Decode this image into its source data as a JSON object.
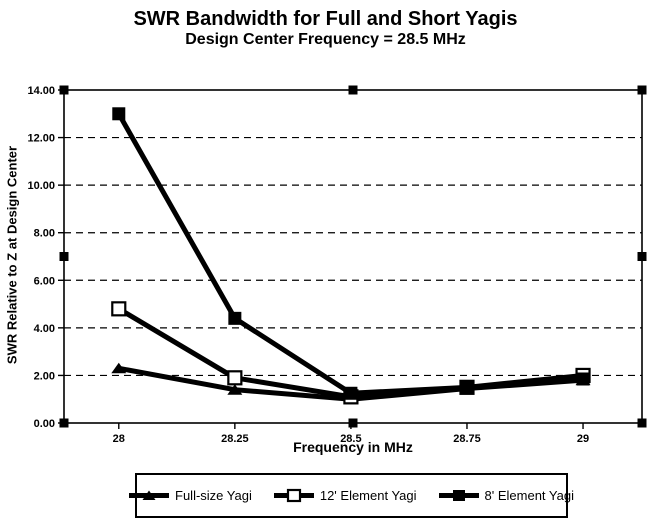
{
  "title": "SWR Bandwidth for Full and Short Yagis",
  "subtitle": "Design Center Frequency = 28.5 MHz",
  "colors": {
    "line": "#000000",
    "background": "#ffffff"
  },
  "selection_handles_visible": true,
  "chart_data": {
    "type": "line",
    "title": "SWR Bandwidth for Full and Short Yagis",
    "subtitle": "Design Center Frequency = 28.5 MHz",
    "xlabel": "Frequency in MHz",
    "ylabel": "SWR Relative to Z at Design Center",
    "x": [
      28,
      28.25,
      28.5,
      28.75,
      29
    ],
    "x_tick_labels": [
      "28",
      "28.25",
      "28.5",
      "28.75",
      "29"
    ],
    "xlim": [
      27.882,
      29.127
    ],
    "y_ticks": [
      0,
      2,
      4,
      6,
      8,
      10,
      12,
      14
    ],
    "y_tick_labels": [
      "0.00",
      "2.00",
      "4.00",
      "6.00",
      "8.00",
      "10.00",
      "12.00",
      "14.00"
    ],
    "ylim": [
      0,
      14
    ],
    "gridlines_y": [
      2,
      4,
      6,
      8,
      10,
      12
    ],
    "grid_style": "horizontal-dashed",
    "legend_position": "bottom-box",
    "series": [
      {
        "name": "Full-size Yagi",
        "marker": "triangle-filled",
        "values": [
          2.3,
          1.4,
          1.0,
          1.45,
          1.8
        ]
      },
      {
        "name": "12' Element Yagi",
        "marker": "square-open",
        "values": [
          4.8,
          1.9,
          1.1,
          1.5,
          2.0
        ]
      },
      {
        "name": "8' Element Yagi",
        "marker": "square-filled",
        "values": [
          13.0,
          4.4,
          1.25,
          1.5,
          1.85
        ]
      }
    ]
  }
}
